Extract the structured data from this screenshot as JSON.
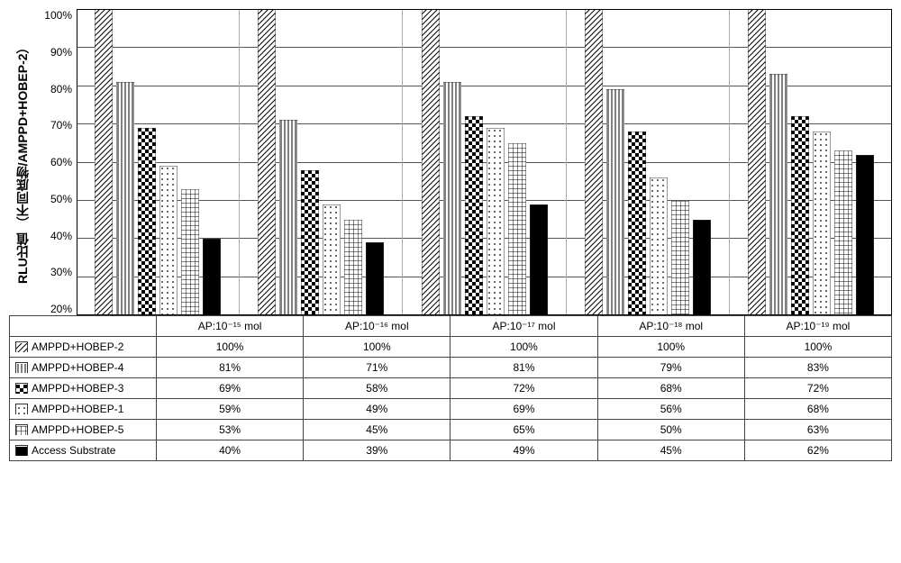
{
  "chart": {
    "type": "bar",
    "y_axis_label": "RLU比值\n（不同底物/AMPPD+HOBEP-2）",
    "y_ticks": [
      "100%",
      "90%",
      "80%",
      "70%",
      "60%",
      "50%",
      "40%",
      "30%",
      "20%"
    ],
    "y_min": 20,
    "y_max": 100,
    "background_color": "#ffffff",
    "grid_color": "#555555",
    "categories": [
      "AP:10⁻¹⁵ mol",
      "AP:10⁻¹⁶ mol",
      "AP:10⁻¹⁷ mol",
      "AP:10⁻¹⁸ mol",
      "AP:10⁻¹⁹ mol"
    ],
    "series": [
      {
        "name": "AMPPD+HOBEP-2",
        "pattern": "diag",
        "values": [
          100,
          100,
          100,
          100,
          100
        ]
      },
      {
        "name": "AMPPD+HOBEP-4",
        "pattern": "vlines",
        "values": [
          81,
          71,
          81,
          79,
          83
        ]
      },
      {
        "name": "AMPPD+HOBEP-3",
        "pattern": "checker",
        "values": [
          69,
          58,
          72,
          68,
          72
        ]
      },
      {
        "name": "AMPPD+HOBEP-1",
        "pattern": "dots",
        "values": [
          59,
          49,
          69,
          56,
          68
        ]
      },
      {
        "name": "AMPPD+HOBEP-5",
        "pattern": "grid",
        "values": [
          53,
          45,
          65,
          50,
          63
        ]
      },
      {
        "name": "Access Substrate",
        "pattern": "solid",
        "values": [
          40,
          39,
          49,
          45,
          62
        ]
      }
    ],
    "table_legend_prefixes": [
      "⧅",
      "▥",
      "◩",
      "▫",
      "▦",
      "■"
    ],
    "colors": {
      "bar_border": "#333333",
      "text": "#000000"
    },
    "font_sizes": {
      "axis_label": 14,
      "ticks": 12,
      "table": 12
    }
  }
}
